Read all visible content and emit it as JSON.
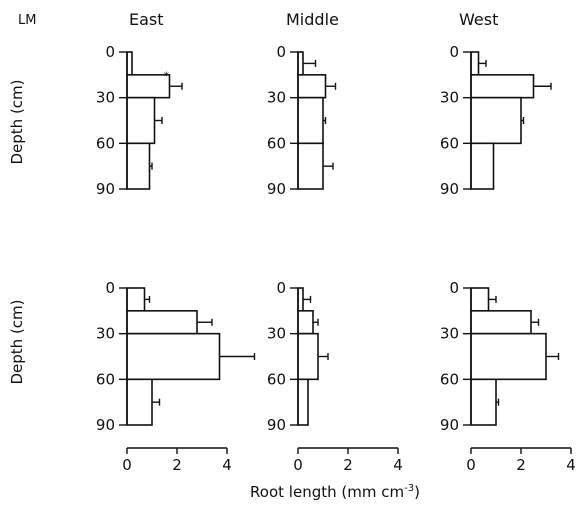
{
  "corner_label": "LM",
  "xlabel": "Root length (mm cm",
  "xlabel_sup": "-3",
  "xlabel_close": ")",
  "ylabel": "Depth (cm)",
  "colors": {
    "bar_fill": "#ffffff",
    "stroke": "#111111"
  },
  "chart_data": {
    "type": "bar",
    "orientation": "horizontal",
    "panels_in_grid": "2 rows x 3 columns",
    "columns": [
      "East",
      "Middle",
      "West"
    ],
    "depth_ticks": [
      "0",
      "30",
      "60",
      "90"
    ],
    "depth_intervals": [
      [
        0,
        15
      ],
      [
        15,
        30
      ],
      [
        30,
        60
      ],
      [
        60,
        90
      ]
    ],
    "x_ticks": [
      "0",
      "2",
      "4"
    ],
    "xlim": [
      0,
      4
    ],
    "rows": [
      {
        "panels": [
          {
            "column": "East",
            "values": [
              0.2,
              1.7,
              1.1,
              0.9
            ],
            "errors": [
              0,
              0.5,
              0.3,
              0.1
            ],
            "marker": "*"
          },
          {
            "column": "Middle",
            "values": [
              0.2,
              1.1,
              1.0,
              1.0
            ],
            "errors": [
              0.5,
              0.4,
              0.1,
              0.4
            ]
          },
          {
            "column": "West",
            "values": [
              0.3,
              2.5,
              2.0,
              0.9
            ],
            "errors": [
              0.3,
              0.7,
              0.1,
              0
            ]
          }
        ]
      },
      {
        "panels": [
          {
            "column": "East",
            "values": [
              0.7,
              2.8,
              3.7,
              1.0
            ],
            "errors": [
              0.2,
              0.6,
              1.4,
              0.3
            ]
          },
          {
            "column": "Middle",
            "values": [
              0.2,
              0.6,
              0.8,
              0.4
            ],
            "errors": [
              0.3,
              0.2,
              0.4,
              0
            ]
          },
          {
            "column": "West",
            "values": [
              0.7,
              2.4,
              3.0,
              1.0
            ],
            "errors": [
              0.3,
              0.3,
              0.5,
              0.1
            ]
          }
        ]
      }
    ],
    "grid": false,
    "legend": "none"
  }
}
